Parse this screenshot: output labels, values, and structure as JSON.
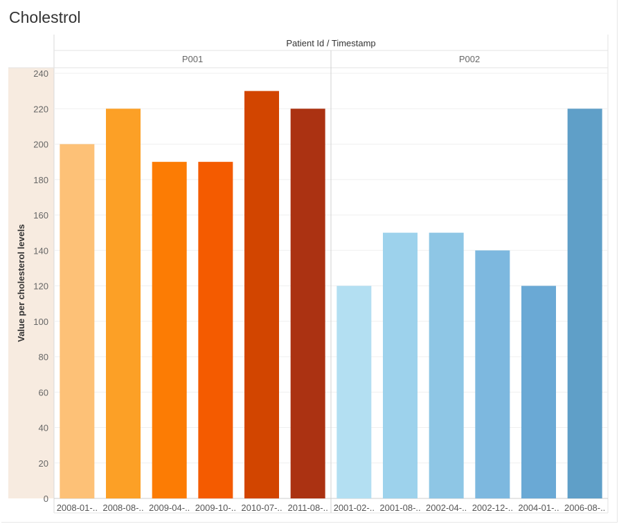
{
  "title": "Cholestrol",
  "chart_data": {
    "type": "bar",
    "title": "Cholestrol",
    "column_header": "Patient Id / Timestamp",
    "ylabel": "Value per cholesterol levels",
    "ylim": [
      0,
      240
    ],
    "yticks": [
      0,
      20,
      40,
      60,
      80,
      100,
      120,
      140,
      160,
      180,
      200,
      220,
      240
    ],
    "gridlines": true,
    "panels": [
      {
        "name": "P001",
        "categories": [
          "2008-01-..",
          "2008-08-..",
          "2009-04-..",
          "2009-10-..",
          "2010-07-..",
          "2011-08-.."
        ],
        "values": [
          200,
          220,
          190,
          190,
          230,
          220
        ],
        "colors": [
          "#fdc177",
          "#fca026",
          "#fc7c04",
          "#f45b00",
          "#d24500",
          "#ab3212"
        ]
      },
      {
        "name": "P002",
        "categories": [
          "2001-02-..",
          "2001-08-..",
          "2002-04-..",
          "2002-12-..",
          "2004-01-..",
          "2006-08-.."
        ],
        "values": [
          120,
          150,
          150,
          140,
          120,
          220
        ],
        "colors": [
          "#b3dff2",
          "#9dd2ec",
          "#8ec6e5",
          "#7db8df",
          "#6aa9d5",
          "#5f9fc8"
        ]
      }
    ]
  }
}
